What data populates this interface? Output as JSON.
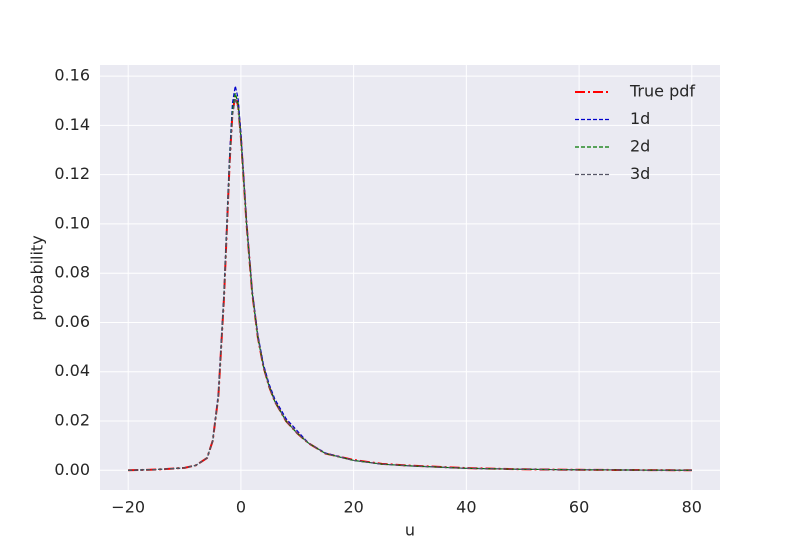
{
  "chart_data": {
    "type": "line",
    "xlabel": "u",
    "ylabel": "probability",
    "x": [
      -20,
      -15,
      -10,
      -8,
      -6,
      -5,
      -4,
      -3,
      -2,
      -1.5,
      -1,
      -0.5,
      0,
      1,
      2,
      3,
      4,
      5,
      6,
      8,
      10,
      12,
      15,
      20,
      25,
      30,
      40,
      50,
      60,
      70,
      80
    ],
    "series": [
      {
        "name": "True pdf",
        "color": "#ff0000",
        "linestyle": "dashdot",
        "values": [
          0,
          0.0003,
          0.001,
          0.002,
          0.005,
          0.012,
          0.03,
          0.07,
          0.125,
          0.145,
          0.152,
          0.148,
          0.135,
          0.1,
          0.072,
          0.054,
          0.042,
          0.034,
          0.028,
          0.02,
          0.015,
          0.011,
          0.0068,
          0.0042,
          0.0026,
          0.0019,
          0.0009,
          0.0004,
          0.0002,
          0.0001,
          0
        ]
      },
      {
        "name": "1d",
        "color": "#0000cc",
        "linestyle": "dashed",
        "values": [
          0,
          0.0003,
          0.001,
          0.002,
          0.005,
          0.012,
          0.031,
          0.072,
          0.128,
          0.149,
          0.156,
          0.151,
          0.137,
          0.101,
          0.073,
          0.055,
          0.043,
          0.035,
          0.029,
          0.021,
          0.016,
          0.011,
          0.007,
          0.004,
          0.0025,
          0.0018,
          0.0008,
          0.0004,
          0.0002,
          0.0001,
          0
        ]
      },
      {
        "name": "2d",
        "color": "#007700",
        "linestyle": "dashed",
        "values": [
          0,
          0.0003,
          0.001,
          0.002,
          0.005,
          0.012,
          0.03,
          0.071,
          0.126,
          0.146,
          0.153,
          0.149,
          0.135,
          0.1,
          0.072,
          0.054,
          0.042,
          0.034,
          0.028,
          0.02,
          0.015,
          0.011,
          0.0068,
          0.004,
          0.0025,
          0.0018,
          0.0008,
          0.0004,
          0.0002,
          0.0001,
          0
        ]
      },
      {
        "name": "3d",
        "color": "#555566",
        "linestyle": "dashed",
        "values": [
          0,
          0.0003,
          0.001,
          0.002,
          0.005,
          0.012,
          0.03,
          0.07,
          0.124,
          0.144,
          0.151,
          0.147,
          0.134,
          0.1,
          0.072,
          0.054,
          0.042,
          0.034,
          0.028,
          0.02,
          0.015,
          0.011,
          0.0068,
          0.004,
          0.0025,
          0.0018,
          0.0008,
          0.0004,
          0.0002,
          0.0001,
          0
        ]
      }
    ],
    "xlim": [
      -25,
      85
    ],
    "ylim": [
      -0.008,
      0.1645
    ],
    "xticks": [
      {
        "value": -20,
        "label": "−20"
      },
      0,
      20,
      40,
      60,
      80
    ],
    "yticks": [
      {
        "value": 0,
        "label": "0.00"
      },
      0.02,
      0.04,
      0.06,
      0.08,
      {
        "value": 0.1,
        "label": "0.10"
      },
      0.12,
      0.14,
      0.16
    ],
    "grid": true,
    "legend": "upper right"
  }
}
